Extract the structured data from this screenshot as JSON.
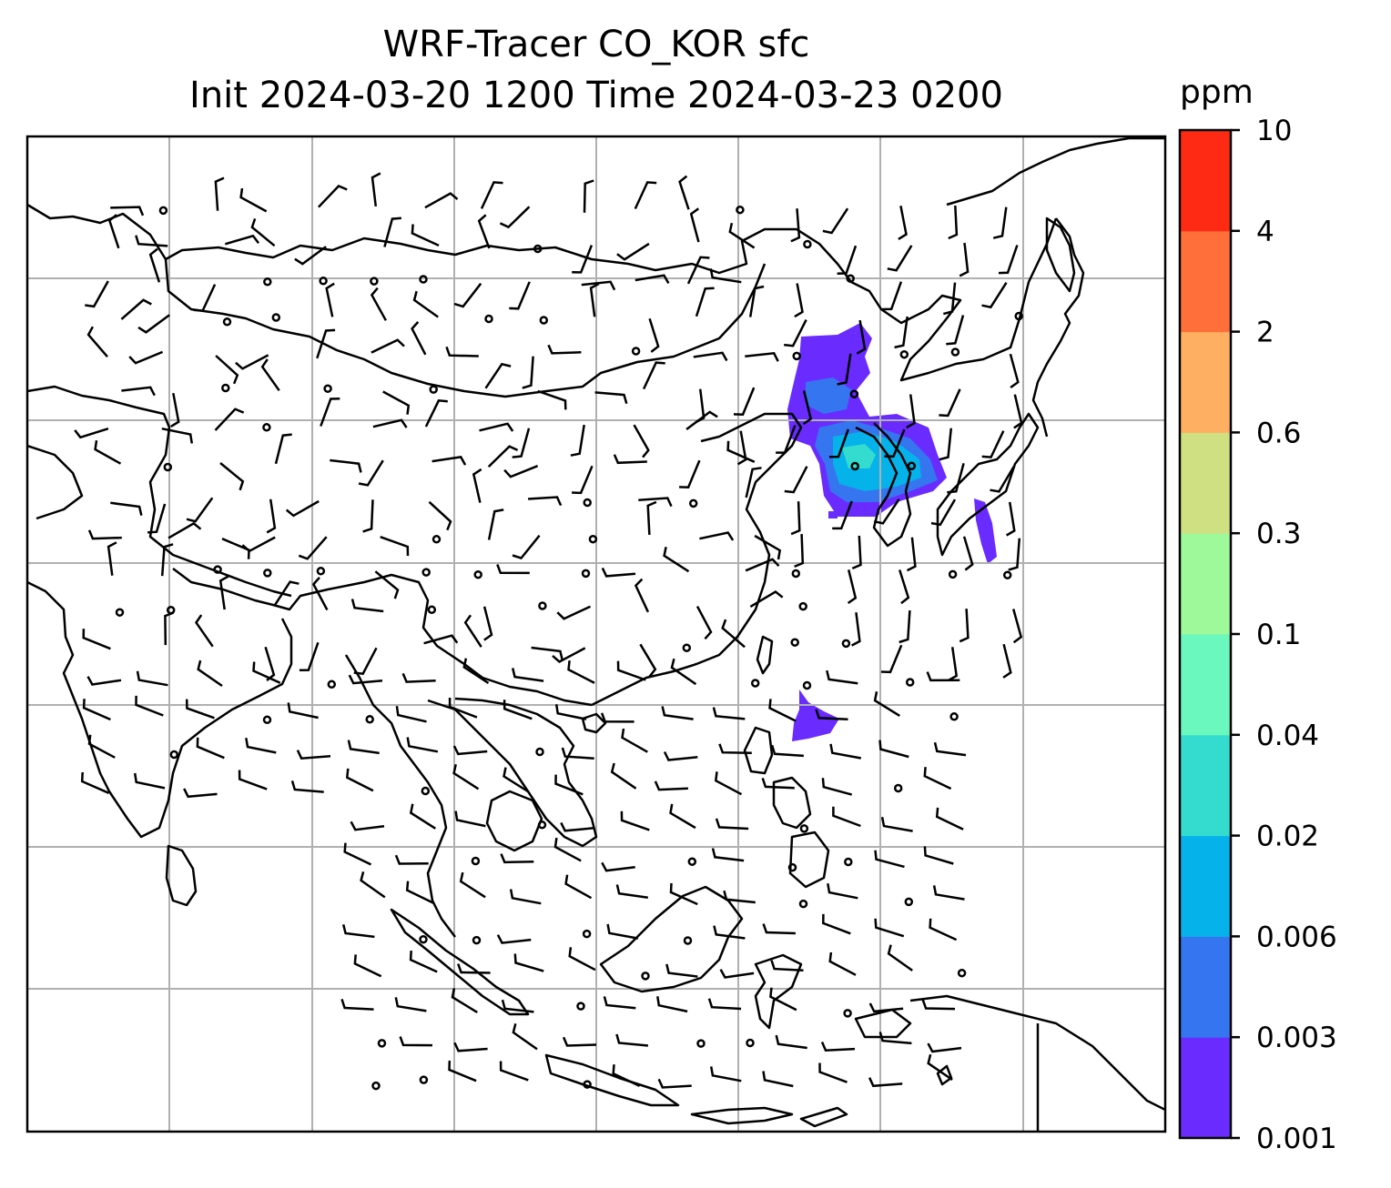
{
  "title": {
    "line1": "WRF-Tracer CO_KOR sfc",
    "line2": "Init 2024-03-20 1200 Time 2024-03-23 0200"
  },
  "colorbar": {
    "unit": "ppm",
    "levels": [
      "0.001",
      "0.003",
      "0.006",
      "0.02",
      "0.04",
      "0.1",
      "0.3",
      "0.6",
      "2",
      "4",
      "10"
    ],
    "colors": [
      "#6a2bff",
      "#3575f0",
      "#05b3ea",
      "#33dccf",
      "#6bf8be",
      "#9ef99a",
      "#cfe083",
      "#ffaf61",
      "#ff6f3a",
      "#ff2a14"
    ]
  },
  "map": {
    "field": "CO_KOR surface tracer concentration",
    "gridlines": true,
    "wind_barbs": true,
    "plume_colors": [
      "#6a2bff",
      "#3575f0",
      "#05b3ea",
      "#33dccf"
    ]
  }
}
